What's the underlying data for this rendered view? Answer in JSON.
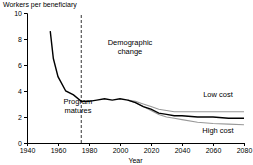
{
  "chart_data": {
    "type": "line",
    "y_label": "Workers per beneficiary",
    "x_label": "Year",
    "x": [
      1955,
      1957,
      1960,
      1965,
      1970,
      1975,
      1980,
      1985,
      1990,
      1995,
      2000,
      2005,
      2010,
      2015,
      2020,
      2025,
      2030,
      2035,
      2040,
      2050,
      2060,
      2070,
      2080
    ],
    "series": [
      {
        "color": "#000000",
        "values": [
          8.6,
          6.5,
          5.1,
          4.0,
          3.7,
          3.2,
          3.2,
          3.3,
          3.4,
          3.3,
          3.4,
          3.3,
          3.1,
          2.8,
          2.6,
          2.3,
          2.2,
          2.1,
          2.1,
          2.0,
          2.0,
          1.9,
          1.9
        ]
      },
      {
        "name": "Low cost",
        "color": "#999999",
        "values": [
          null,
          null,
          null,
          null,
          null,
          null,
          null,
          null,
          null,
          null,
          null,
          3.3,
          3.2,
          3.0,
          2.8,
          2.6,
          2.5,
          2.4,
          2.4,
          2.4,
          2.4,
          2.4,
          2.4
        ]
      },
      {
        "name": "High cost",
        "color": "#999999",
        "values": [
          null,
          null,
          null,
          null,
          null,
          null,
          null,
          null,
          null,
          null,
          null,
          3.3,
          3.1,
          2.8,
          2.5,
          2.2,
          2.0,
          1.9,
          1.8,
          1.6,
          1.5,
          1.45,
          1.4
        ]
      }
    ],
    "vline": 1975,
    "annotations": [
      "Demographic change",
      "Program matures"
    ],
    "xlim": [
      1940,
      2080
    ],
    "xticks": [
      1940,
      1960,
      1980,
      2000,
      2020,
      2040,
      2060,
      2080
    ],
    "ylim": [
      0,
      10
    ],
    "yticks": [
      0,
      2,
      4,
      6,
      8,
      10
    ],
    "grid": false
  }
}
